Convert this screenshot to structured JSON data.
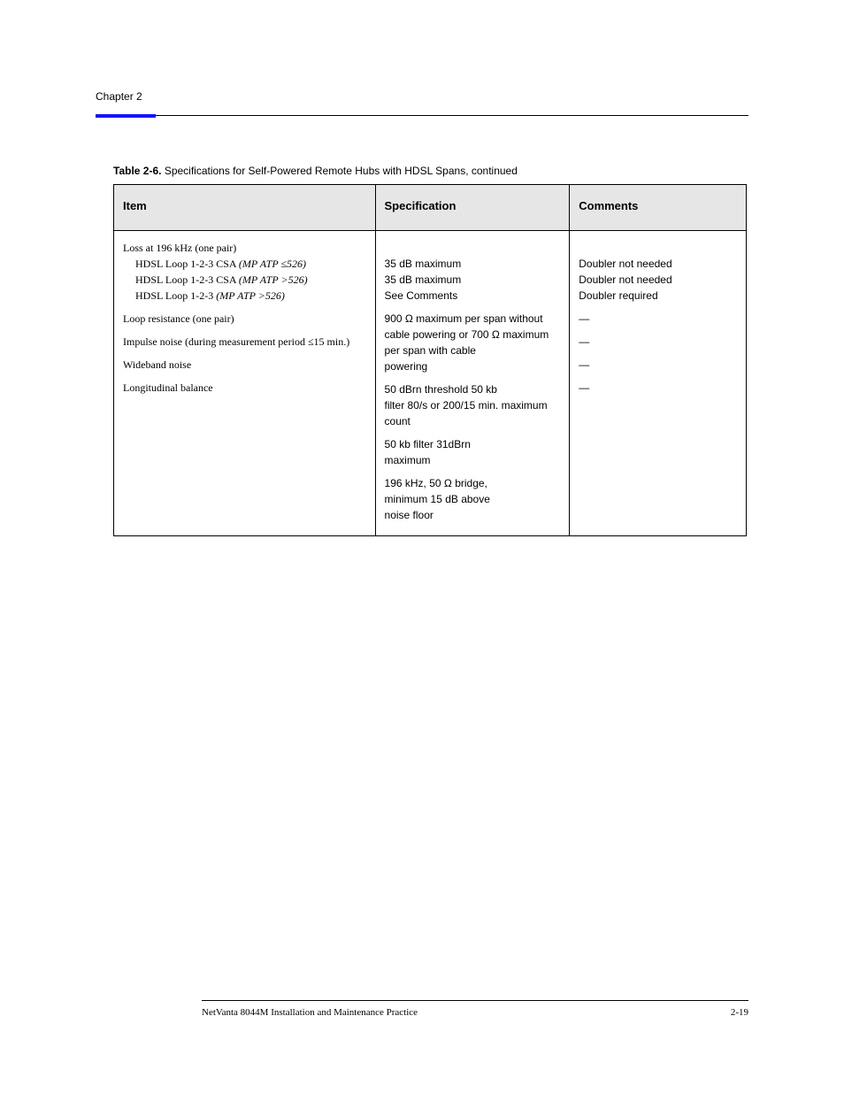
{
  "chapter": "Chapter 2",
  "caption": "Specifications for Self-Powered Remote Hubs with HDSL Spans, continued",
  "columns": [
    "Item",
    "Specification",
    "Comments"
  ],
  "rows": [
    {
      "item_html": "Loss at 196 kHz (one pair)<br><span class=\"indent1\">HDSL Loop 1-2-3 CSA <span class=\"note-ital\">(MP ATP ≤526)</span></span><span class=\"indent1\">HDSL Loop 1-2-3 CSA <span class=\"note-ital\">(MP ATP >526)</span></span><span class=\"indent1\">HDSL Loop 1-2-3 <span class=\"note-ital\">(MP ATP >526)</span></span>",
      "spec_html": "<br>35 dB maximum<br>35 dB maximum<br>See Comments",
      "comment_html": "<br>Doubler not needed<br>Doubler not needed<br>Doubler required"
    },
    {
      "item_html": "Loop resistance (one pair)",
      "spec_html": "900 Ω maximum per span without cable powering or 700 Ω maximum per span with cable<br>powering",
      "comment_html": "—"
    },
    {
      "item_html": "Impulse noise (during measurement period ≤15 min.)",
      "spec_html": "50 dBrn threshold 50 kb<br>filter 80/s or 200/15 min. maximum count",
      "comment_html": "—"
    },
    {
      "item_html": "Wideband noise",
      "spec_html": "50 kb filter 31dBrn<br>maximum",
      "comment_html": "—"
    },
    {
      "item_html": "Longitudinal balance",
      "spec_html": "196 kHz, 50 Ω bridge,<br>minimum 15 dB above<br>noise floor",
      "comment_html": "—"
    }
  ],
  "footer": "NetVanta 8044M Installation and Maintenance Practice",
  "page": "2-19",
  "colors": {
    "blue": "#1414ff",
    "header_bg": "#e6e6e6"
  }
}
